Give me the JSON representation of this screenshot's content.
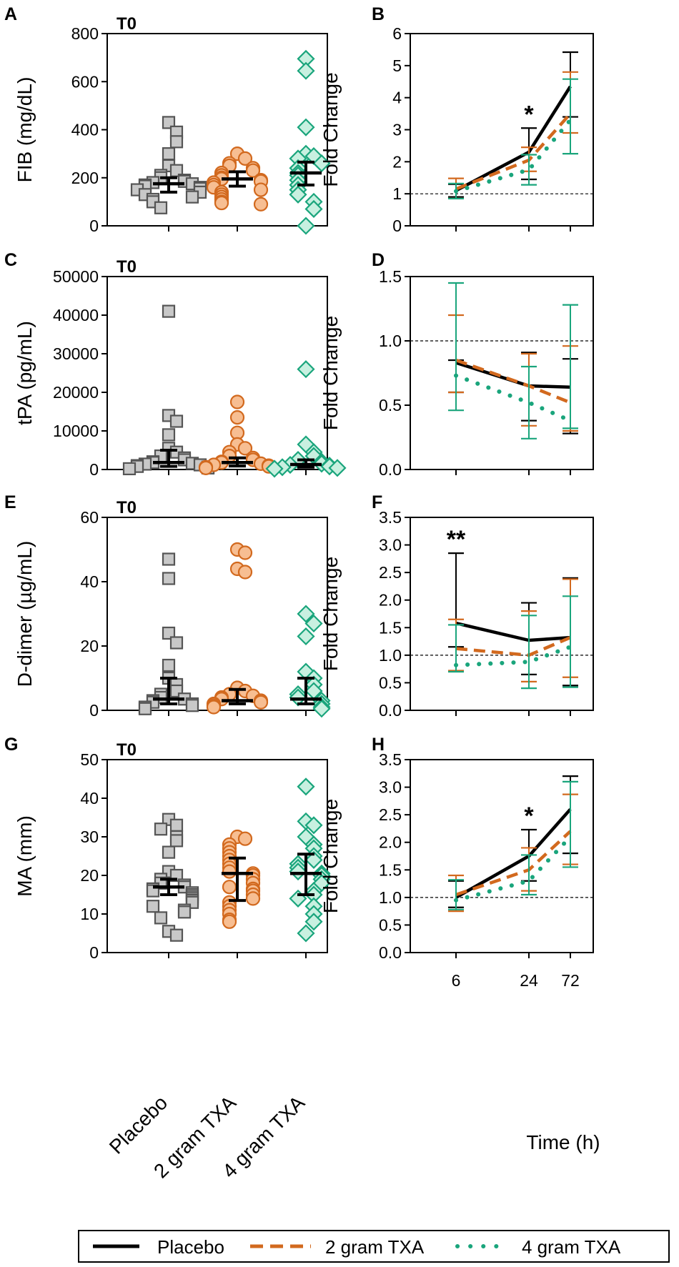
{
  "legend": {
    "entries": [
      {
        "label": "Placebo",
        "style": "solid",
        "color": "#000000"
      },
      {
        "label": "2 gram TXA",
        "style": "dashed",
        "color": "#d2691e"
      },
      {
        "label": "4 gram TXA",
        "style": "dotted",
        "color": "#1aa57c"
      }
    ]
  },
  "colors": {
    "placebo_fill": "#c8c8c8",
    "placebo_edge": "#555555",
    "txa2_fill": "#f7be92",
    "txa2_edge": "#d2691e",
    "txa4_fill": "#c8f0e0",
    "txa4_edge": "#1aa57c"
  },
  "chart_data": [
    {
      "panel": "A",
      "type": "scatter",
      "title": "T0",
      "ylabel": "FIB (mg/dL)",
      "ylim": [
        0,
        800
      ],
      "yticks": [
        "0",
        "200",
        "400",
        "600",
        "800"
      ],
      "categories": [
        "Placebo",
        "2 gram TXA",
        "4 gram TXA"
      ],
      "groups": [
        {
          "name": "Placebo",
          "marker": "square",
          "values": [
            430,
            390,
            350,
            300,
            250,
            230,
            210,
            200,
            190,
            185,
            180,
            175,
            170,
            165,
            160,
            155,
            150,
            140,
            130,
            120,
            110,
            100,
            75
          ],
          "median": 175,
          "ci": [
            140,
            200
          ]
        },
        {
          "name": "2 gram TXA",
          "marker": "circle",
          "values": [
            300,
            280,
            260,
            250,
            240,
            230,
            220,
            210,
            200,
            195,
            190,
            185,
            180,
            170,
            160,
            150,
            140,
            130,
            120,
            110,
            100,
            95,
            90
          ],
          "median": 195,
          "ci": [
            165,
            225
          ]
        },
        {
          "name": "4 gram TXA",
          "marker": "diamond",
          "values": [
            695,
            645,
            410,
            300,
            290,
            280,
            260,
            240,
            220,
            210,
            190,
            170,
            150,
            130,
            100,
            70,
            0
          ],
          "median": 220,
          "ci": [
            170,
            265
          ]
        }
      ]
    },
    {
      "panel": "B",
      "type": "line",
      "ylabel": "Fold Change",
      "ylim": [
        0,
        6
      ],
      "yticks": [
        "0",
        "1",
        "2",
        "3",
        "4",
        "5",
        "6"
      ],
      "reference_line": 1,
      "annotations": [
        {
          "text": "*",
          "x": "24"
        }
      ],
      "x": [
        "6",
        "24",
        "72"
      ],
      "series": [
        {
          "name": "Placebo",
          "values": [
            1.1,
            2.3,
            4.35
          ],
          "err_low": [
            0.9,
            1.45,
            3.4
          ],
          "err_high": [
            1.3,
            3.05,
            5.42
          ]
        },
        {
          "name": "2 gram TXA",
          "values": [
            1.15,
            2.05,
            3.5
          ],
          "err_low": [
            0.85,
            1.7,
            2.9
          ],
          "err_high": [
            1.48,
            2.45,
            4.8
          ]
        },
        {
          "name": "4 gram TXA",
          "values": [
            1.08,
            1.75,
            3.3
          ],
          "err_low": [
            0.85,
            1.28,
            2.25
          ],
          "err_high": [
            1.32,
            2.22,
            4.58
          ]
        }
      ]
    },
    {
      "panel": "C",
      "type": "scatter",
      "title": "T0",
      "ylabel": "tPA (pg/mL)",
      "ylim": [
        0,
        50000
      ],
      "yticks": [
        "0",
        "10000",
        "20000",
        "30000",
        "40000",
        "50000"
      ],
      "categories": [
        "Placebo",
        "2 gram TXA",
        "4 gram TXA"
      ],
      "groups": [
        {
          "name": "Placebo",
          "marker": "square",
          "values": [
            41000,
            14000,
            12500,
            9000,
            5500,
            4500,
            3500,
            3000,
            2500,
            2000,
            1800,
            1600,
            1400,
            1200,
            1000,
            800,
            600,
            400,
            200
          ],
          "median": 1800,
          "ci": [
            800,
            5000
          ]
        },
        {
          "name": "2 gram TXA",
          "marker": "circle",
          "values": [
            17500,
            13500,
            9500,
            6500,
            5500,
            4500,
            3500,
            3000,
            2500,
            2000,
            1800,
            1500,
            1200,
            1000,
            800,
            600,
            400
          ],
          "median": 1800,
          "ci": [
            900,
            3000
          ]
        },
        {
          "name": "4 gram TXA",
          "marker": "diamond",
          "values": [
            26000,
            6500,
            4500,
            3500,
            2500,
            2000,
            1500,
            1200,
            1000,
            800,
            600,
            400,
            200
          ],
          "median": 1300,
          "ci": [
            600,
            2500
          ]
        }
      ]
    },
    {
      "panel": "D",
      "type": "line",
      "ylabel": "Fold Change",
      "ylim": [
        0,
        1.5
      ],
      "yticks": [
        "0.0",
        "0.5",
        "1.0",
        "1.5"
      ],
      "reference_line": 1.0,
      "annotations": [],
      "x": [
        "6",
        "24",
        "72"
      ],
      "series": [
        {
          "name": "Placebo",
          "values": [
            0.83,
            0.65,
            0.64
          ],
          "err_low": [
            0.6,
            0.38,
            0.28
          ],
          "err_high": [
            0.85,
            0.91,
            0.86
          ]
        },
        {
          "name": "2 gram TXA",
          "values": [
            0.85,
            0.65,
            0.52
          ],
          "err_low": [
            0.6,
            0.34,
            0.3
          ],
          "err_high": [
            1.2,
            0.9,
            0.96
          ]
        },
        {
          "name": "4 gram TXA",
          "values": [
            0.73,
            0.52,
            0.38
          ],
          "err_low": [
            0.46,
            0.24,
            0.32
          ],
          "err_high": [
            1.45,
            0.8,
            1.28
          ]
        }
      ]
    },
    {
      "panel": "E",
      "type": "scatter",
      "title": "T0",
      "ylabel": "D-dimer (µg/mL)",
      "ylim": [
        0,
        60
      ],
      "yticks": [
        "0",
        "20",
        "40",
        "60"
      ],
      "categories": [
        "Placebo",
        "2 gram TXA",
        "4 gram TXA"
      ],
      "groups": [
        {
          "name": "Placebo",
          "marker": "square",
          "values": [
            47,
            41,
            24,
            21,
            14,
            10,
            8,
            6,
            5,
            4,
            3.5,
            3,
            2.5,
            2,
            1.5,
            1,
            0.5
          ],
          "median": 3.5,
          "ci": [
            2,
            10
          ]
        },
        {
          "name": "2 gram TXA",
          "marker": "circle",
          "values": [
            50,
            49,
            44,
            43,
            7,
            6,
            5,
            4.5,
            4,
            3.5,
            3,
            2.5,
            2,
            1.5,
            1
          ],
          "median": 3,
          "ci": [
            2,
            6.5
          ]
        },
        {
          "name": "4 gram TXA",
          "marker": "diamond",
          "values": [
            30,
            27,
            23,
            12,
            10,
            8,
            6,
            5,
            4,
            3,
            2,
            1,
            0.5
          ],
          "median": 3.5,
          "ci": [
            2,
            10
          ]
        }
      ]
    },
    {
      "panel": "F",
      "type": "line",
      "ylabel": "Fold Change",
      "ylim": [
        0,
        3.5
      ],
      "yticks": [
        "0.0",
        "0.5",
        "1.0",
        "1.5",
        "2.0",
        "2.5",
        "3.0",
        "3.5"
      ],
      "reference_line": 1.0,
      "annotations": [
        {
          "text": "**",
          "x": "6"
        }
      ],
      "x": [
        "6",
        "24",
        "72"
      ],
      "series": [
        {
          "name": "Placebo",
          "values": [
            1.58,
            1.27,
            1.32
          ],
          "err_low": [
            1.15,
            0.65,
            0.45
          ],
          "err_high": [
            2.85,
            1.95,
            2.4
          ]
        },
        {
          "name": "2 gram TXA",
          "values": [
            1.12,
            1.0,
            1.32
          ],
          "err_low": [
            0.72,
            0.52,
            0.6
          ],
          "err_high": [
            1.65,
            1.8,
            2.38
          ]
        },
        {
          "name": "4 gram TXA",
          "values": [
            0.82,
            0.88,
            1.15
          ],
          "err_low": [
            0.7,
            0.4,
            0.42
          ],
          "err_high": [
            1.55,
            1.72,
            2.07
          ]
        }
      ]
    },
    {
      "panel": "G",
      "type": "scatter",
      "title": "T0",
      "ylabel": "MA (mm)",
      "ylim": [
        0,
        50
      ],
      "yticks": [
        "0",
        "10",
        "20",
        "30",
        "40",
        "50"
      ],
      "categories": [
        "Placebo",
        "2 gram TXA",
        "4 gram TXA"
      ],
      "groups": [
        {
          "name": "Placebo",
          "marker": "square",
          "values": [
            34.5,
            33,
            32,
            30,
            29,
            26,
            21,
            20,
            19,
            18,
            17.5,
            17,
            16.5,
            16,
            15.5,
            15,
            14.5,
            14,
            13.5,
            13,
            12,
            11,
            10.5,
            9,
            5.5,
            4.5
          ],
          "median": 17,
          "ci": [
            15,
            19
          ]
        },
        {
          "name": "2 gram TXA",
          "marker": "circle",
          "values": [
            30,
            29.5,
            28,
            27,
            26,
            25,
            24,
            23,
            22,
            21,
            20.5,
            20,
            19,
            18,
            17,
            16.5,
            16,
            15,
            14,
            13,
            12,
            11,
            10,
            8.5,
            8
          ],
          "median": 20.5,
          "ci": [
            13.5,
            24.5
          ]
        },
        {
          "name": "4 gram TXA",
          "marker": "diamond",
          "values": [
            43,
            34,
            33,
            30,
            28,
            27,
            25,
            24,
            23,
            22,
            21,
            20.5,
            20,
            19,
            18,
            16,
            15,
            14,
            12,
            10,
            8,
            5
          ],
          "median": 20.5,
          "ci": [
            15,
            25.5
          ]
        }
      ]
    },
    {
      "panel": "H",
      "type": "line",
      "ylabel": "Fold Change",
      "ylim": [
        0,
        3.5
      ],
      "yticks": [
        "0.0",
        "0.5",
        "1.0",
        "1.5",
        "2.0",
        "2.5",
        "3.0",
        "3.5"
      ],
      "reference_line": 1.0,
      "annotations": [
        {
          "text": "*",
          "x": "24"
        }
      ],
      "xlabel": "Time (h)",
      "x": [
        "6",
        "24",
        "72"
      ],
      "series": [
        {
          "name": "Placebo",
          "values": [
            1.0,
            1.75,
            2.6
          ],
          "err_low": [
            0.82,
            1.3,
            1.8
          ],
          "err_high": [
            1.3,
            2.23,
            3.2
          ]
        },
        {
          "name": "2 gram TXA",
          "values": [
            1.05,
            1.5,
            2.2
          ],
          "err_low": [
            0.75,
            1.12,
            1.6
          ],
          "err_high": [
            1.4,
            1.9,
            2.87
          ]
        },
        {
          "name": "4 gram TXA",
          "values": [
            0.95,
            1.3,
            2.1
          ],
          "err_low": [
            0.78,
            1.05,
            1.55
          ],
          "err_high": [
            1.32,
            1.77,
            3.1
          ]
        }
      ]
    }
  ]
}
